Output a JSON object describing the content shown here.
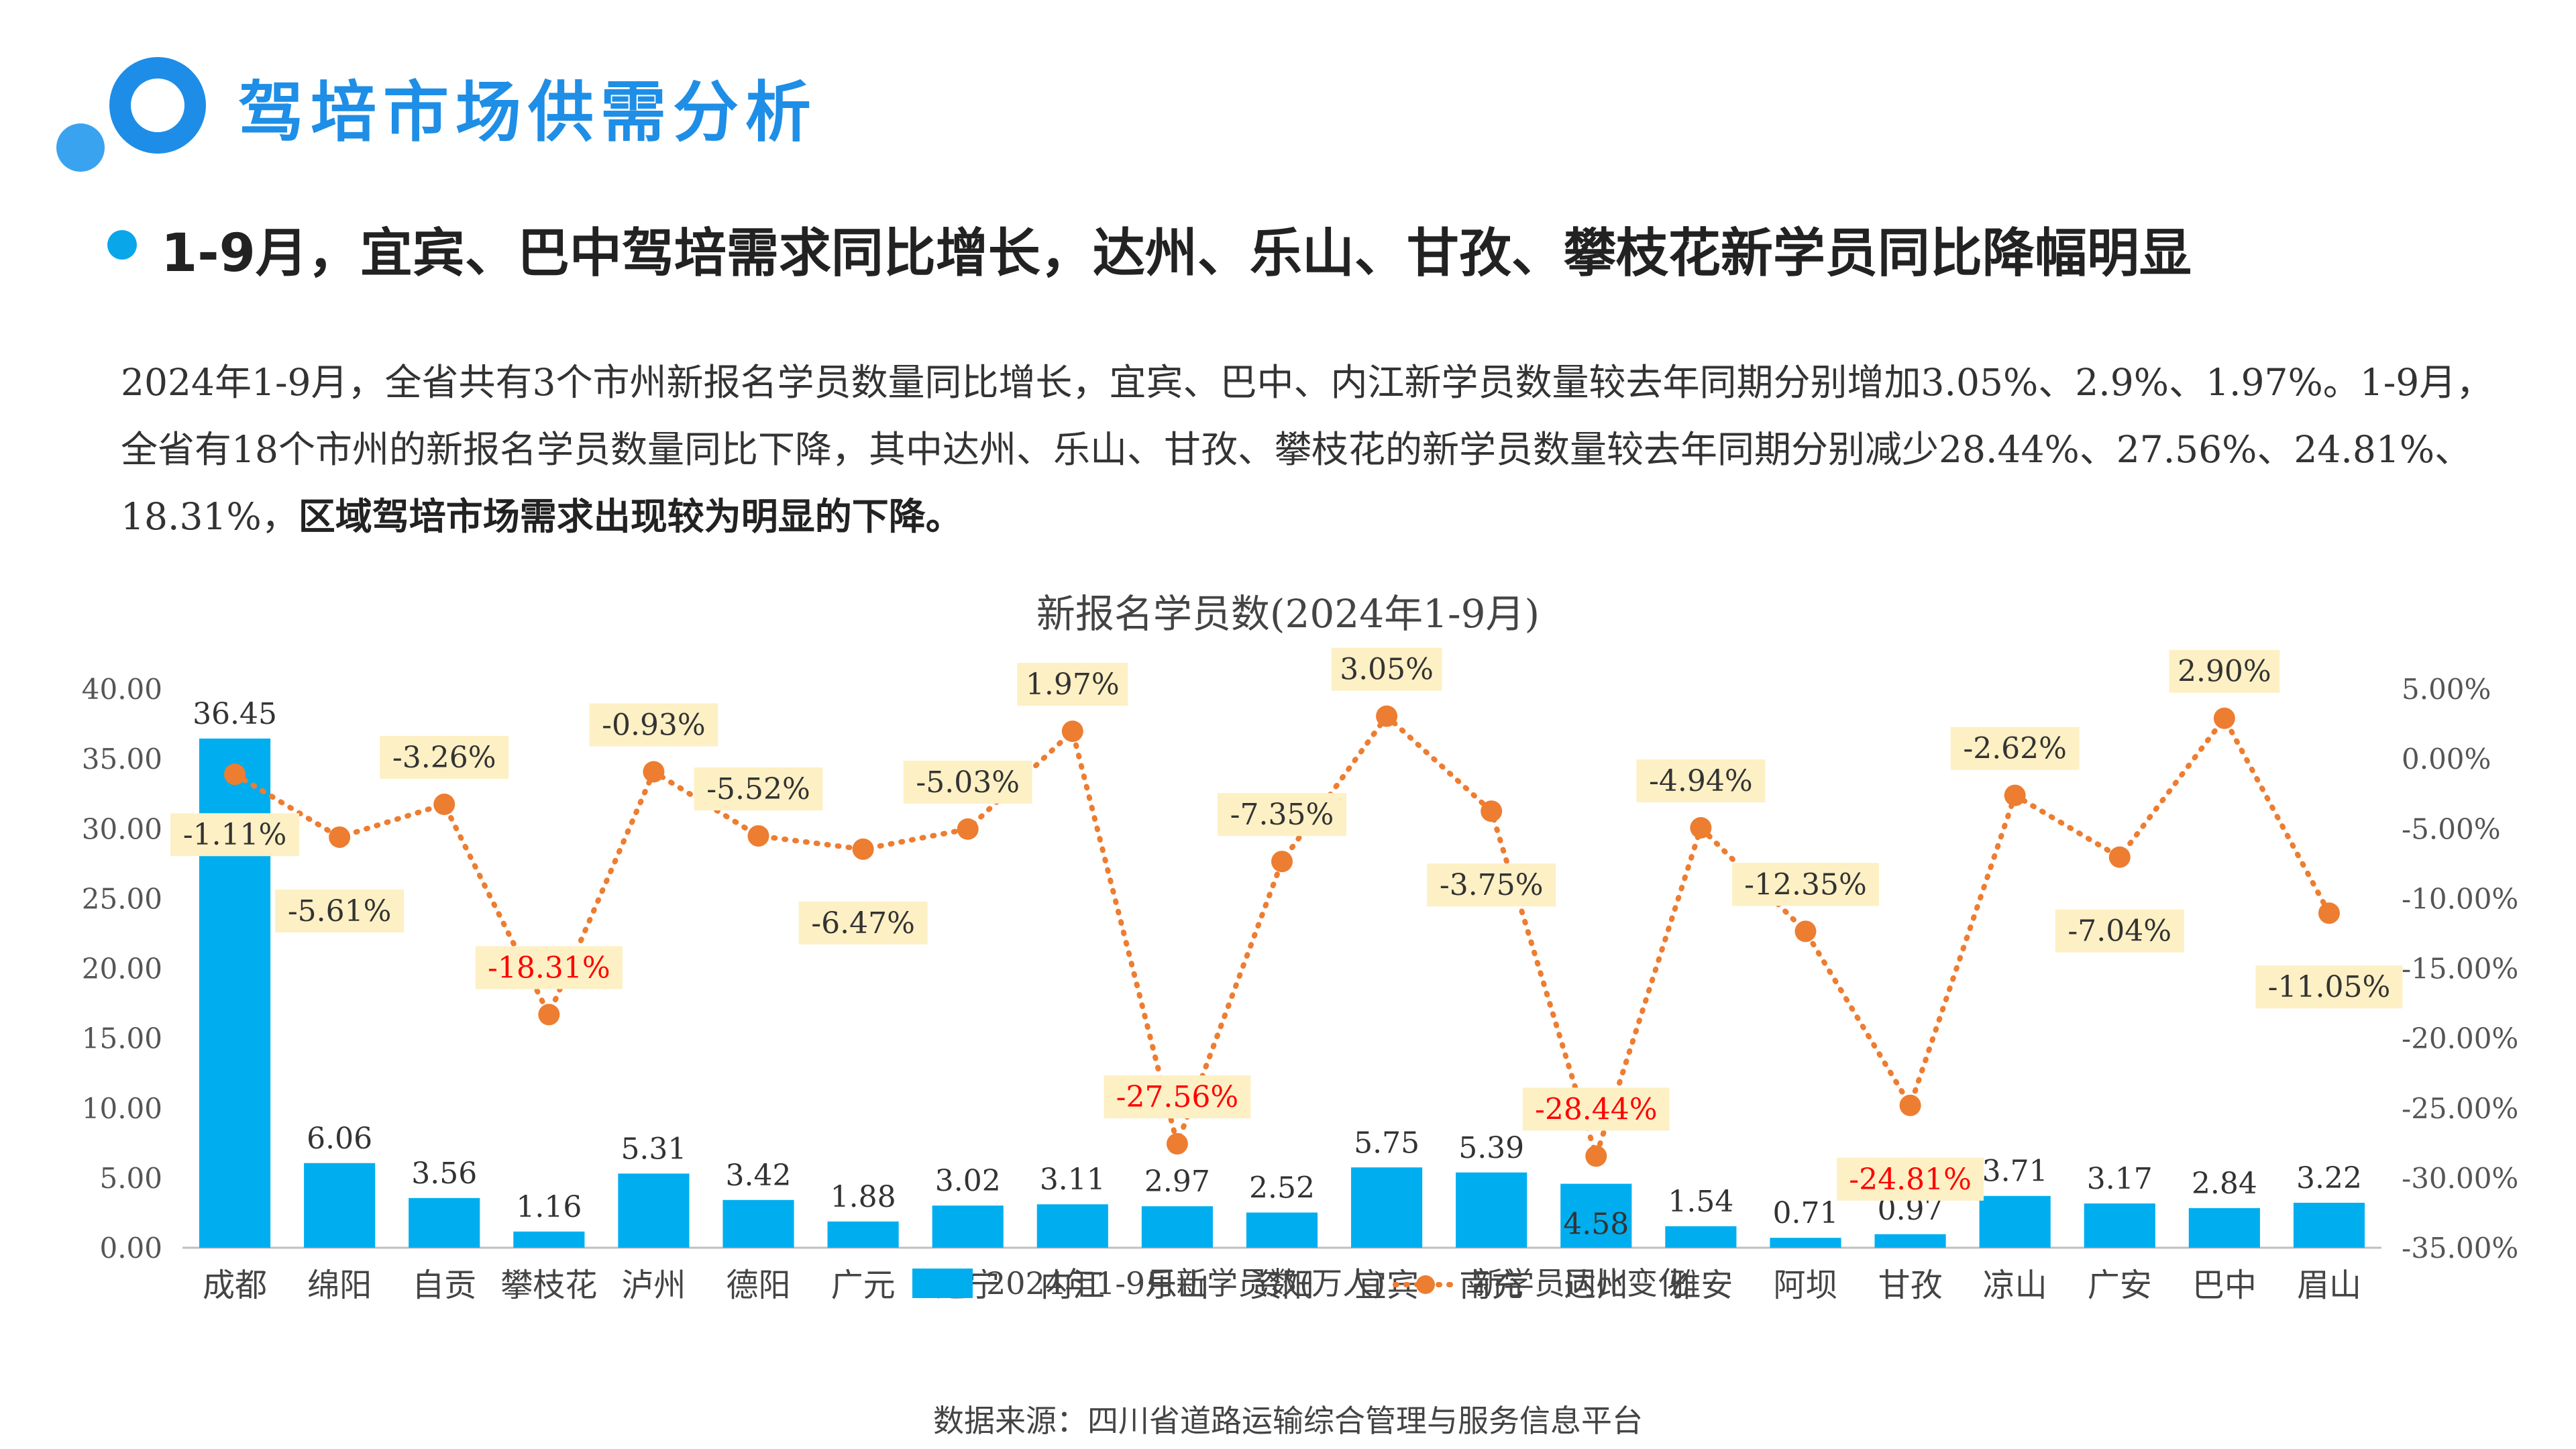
{
  "header": {
    "title": "驾培市场供需分析",
    "subtitle": "1-9月，宜宾、巴中驾培需求同比增长，达州、乐山、甘孜、攀枝花新学员同比降幅明显",
    "paragraph_plain": "2024年1-9月，全省共有3个市州新报名学员数量同比增长，宜宾、巴中、内江新学员数量较去年同期分别增加3.05%、2.9%、1.97%。1-9月，全省有18个市州的新报名学员数量同比下降，其中达州、乐山、甘孜、攀枝花的新学员数量较去年同期分别减少28.44%、27.56%、24.81%、18.31%，",
    "paragraph_bold": "区域驾培市场需求出现较为明显的下降。"
  },
  "source": "数据来源：四川省道路运输综合管理与服务信息平台",
  "colors": {
    "bar": "#00aeef",
    "line": "#ed7d31",
    "label_bg": "#fdf0c4",
    "negative_big": "#ff0000",
    "title_blue": "#1e8ee6"
  },
  "chart_data": {
    "type": "bar",
    "title": "新报名学员数(2024年1-9月)",
    "categories": [
      "成都",
      "绵阳",
      "自贡",
      "攀枝花",
      "泸州",
      "德阳",
      "广元",
      "遂宁",
      "内江",
      "乐山",
      "资阳",
      "宜宾",
      "南充",
      "达州",
      "雅安",
      "阿坝",
      "甘孜",
      "凉山",
      "广安",
      "巴中",
      "眉山"
    ],
    "series": [
      {
        "name": "2024年1-9月新学员数(万人)",
        "type": "bar",
        "axis": "left",
        "values": [
          36.45,
          6.06,
          3.56,
          1.16,
          5.31,
          3.42,
          1.88,
          3.02,
          3.11,
          2.97,
          2.52,
          5.75,
          5.39,
          4.58,
          1.54,
          0.71,
          0.97,
          3.71,
          3.17,
          2.84,
          3.22
        ],
        "labels": [
          "36.45",
          "6.06",
          "3.56",
          "1.16",
          "5.31",
          "3.42",
          "1.88",
          "3.02",
          "3.11",
          "2.97",
          "2.52",
          "5.75",
          "5.39",
          "4.58",
          "1.54",
          "0.71",
          "0.97",
          "3.71",
          "3.17",
          "2.84",
          "3.22"
        ]
      },
      {
        "name": "新学员同比变化",
        "type": "line",
        "axis": "right",
        "values": [
          -1.11,
          -5.61,
          -3.26,
          -18.31,
          -0.93,
          -5.52,
          -6.47,
          -5.03,
          1.97,
          -27.56,
          -7.35,
          3.05,
          -3.75,
          -28.44,
          -4.94,
          -12.35,
          -24.81,
          -2.62,
          -7.04,
          2.9,
          -11.05
        ],
        "labels": [
          "-1.11%",
          "-5.61%",
          "-3.26%",
          "-18.31%",
          "-0.93%",
          "-5.52%",
          "-6.47%",
          "-5.03%",
          "1.97%",
          "-27.56%",
          "-7.35%",
          "3.05%",
          "-3.75%",
          "-28.44%",
          "-4.94%",
          "-12.35%",
          "-24.81%",
          "-2.62%",
          "-7.04%",
          "2.90%",
          "-11.05%"
        ]
      }
    ],
    "y_left": {
      "min": 0,
      "max": 40,
      "ticks": [
        "0.00",
        "5.00",
        "10.00",
        "15.00",
        "20.00",
        "25.00",
        "30.00",
        "35.00",
        "40.00"
      ]
    },
    "y_right": {
      "min": -35,
      "max": 5,
      "ticks": [
        "-35.00%",
        "-30.00%",
        "-25.00%",
        "-20.00%",
        "-15.00%",
        "-10.00%",
        "-5.00%",
        "0.00%",
        "5.00%"
      ]
    },
    "legend": [
      "2024年1-9月新学员数(万人)",
      "新学员同比变化"
    ],
    "legend_position": "bottom",
    "grid": false
  }
}
